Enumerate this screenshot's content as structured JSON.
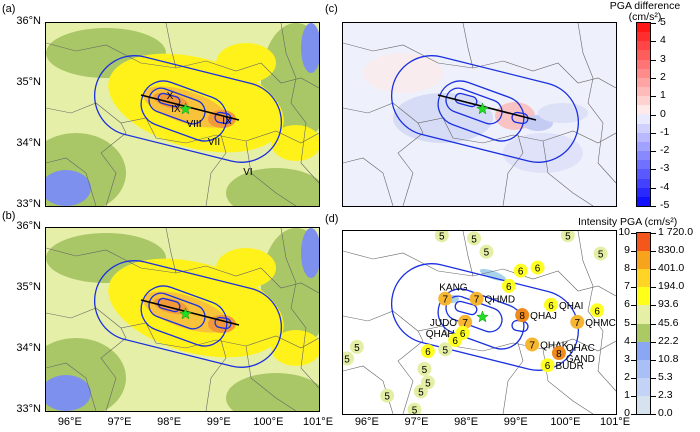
{
  "panels": {
    "a": "(a)",
    "b": "(b)",
    "c": "(c)",
    "d": "(d)"
  },
  "lat_labels": [
    "36°N",
    "35°N",
    "34°N",
    "33°N"
  ],
  "lat_values": [
    36,
    35,
    34,
    33
  ],
  "lon_labels": [
    "96°E",
    "97°E",
    "98°E",
    "99°E",
    "100°E",
    "101°E"
  ],
  "lon_values": [
    96,
    97,
    98,
    99,
    100,
    101
  ],
  "map_extent": {
    "lon": [
      95.5,
      101
    ],
    "lat": [
      33,
      36
    ]
  },
  "epicenter": {
    "lon": 98.31,
    "lat": 34.59,
    "color": "#22dd22"
  },
  "intensity_labels": [
    "X",
    "IX",
    "VIII",
    "IX",
    "VII",
    "VI"
  ],
  "diff_colorbar": {
    "title1": "PGA difference",
    "title2": "(cm/s²)",
    "ticks": [
      "5",
      "4",
      "3",
      "2",
      "1",
      "0",
      "-1",
      "-2",
      "-3",
      "-4",
      "-5"
    ]
  },
  "int_colorbar": {
    "title": "Intensity PGA (cm/s²)",
    "intensity_ticks": [
      "10",
      "9",
      "8",
      "7",
      "6",
      "5",
      "4",
      "3",
      "2",
      "1",
      "0"
    ],
    "pga_ticks": [
      "1 720.0",
      "830.0",
      "401.0",
      "194.0",
      "93.6",
      "45.6",
      "22.2",
      "10.8",
      "5.3",
      "2.3",
      "0.0"
    ],
    "colors": [
      "#d6e2ee",
      "#c3d3f6",
      "#a8c0f6",
      "#8ba7f4",
      "#abc964",
      "#e6efa6",
      "#ffff1a",
      "#ffd424",
      "#f7a31c",
      "#f4561c"
    ]
  },
  "station_colors": {
    "5": "#e4eea4",
    "6": "#ffff22",
    "7": "#f6b631",
    "8": "#f08a1a"
  },
  "stations": [
    {
      "v": "5",
      "lon": 97.49,
      "lat": 35.93,
      "name": ""
    },
    {
      "v": "5",
      "lon": 98.14,
      "lat": 35.88,
      "name": ""
    },
    {
      "v": "5",
      "lon": 98.39,
      "lat": 35.66,
      "name": ""
    },
    {
      "v": "5",
      "lon": 100.03,
      "lat": 35.93,
      "name": ""
    },
    {
      "v": "5",
      "lon": 100.69,
      "lat": 35.63,
      "name": ""
    },
    {
      "v": "6",
      "lon": 99.08,
      "lat": 35.35,
      "name": ""
    },
    {
      "v": "6",
      "lon": 99.42,
      "lat": 35.4,
      "name": ""
    },
    {
      "v": "6",
      "lon": 98.84,
      "lat": 35.1,
      "name": ""
    },
    {
      "v": "7",
      "lon": 97.56,
      "lat": 34.89,
      "name": "KANG",
      "pos": "above"
    },
    {
      "v": "7",
      "lon": 98.19,
      "lat": 34.89,
      "name": "QHMD",
      "pos": "right"
    },
    {
      "v": "6",
      "lon": 99.69,
      "lat": 34.79,
      "name": "QHAI",
      "pos": "right"
    },
    {
      "v": "8",
      "lon": 99.11,
      "lat": 34.62,
      "name": "QHAJ",
      "pos": "right"
    },
    {
      "v": "6",
      "lon": 100.62,
      "lat": 34.7,
      "name": ""
    },
    {
      "v": "7",
      "lon": 100.22,
      "lat": 34.51,
      "name": "QHMC",
      "pos": "right"
    },
    {
      "v": "7",
      "lon": 97.96,
      "lat": 34.51,
      "name": "JUDO",
      "pos": "left"
    },
    {
      "v": "6",
      "lon": 97.91,
      "lat": 34.33,
      "name": "QHAH",
      "pos": "left"
    },
    {
      "v": "6",
      "lon": 97.76,
      "lat": 34.21,
      "name": ""
    },
    {
      "v": "5",
      "lon": 97.56,
      "lat": 34.06,
      "name": ""
    },
    {
      "v": "6",
      "lon": 97.21,
      "lat": 34.03,
      "name": ""
    },
    {
      "v": "5",
      "lon": 95.78,
      "lat": 34.1,
      "name": ""
    },
    {
      "v": "5",
      "lon": 95.58,
      "lat": 33.91,
      "name": ""
    },
    {
      "v": "7",
      "lon": 99.31,
      "lat": 34.14,
      "name": "QHAK",
      "pos": "right"
    },
    {
      "v": "8",
      "lon": 99.85,
      "lat": 34.0,
      "name": "QHAC",
      "pos": "upright",
      "name2": "GAND"
    },
    {
      "v": "6",
      "lon": 99.62,
      "lat": 33.8,
      "name": "BUDR",
      "pos": "right"
    },
    {
      "v": "5",
      "lon": 97.14,
      "lat": 33.74,
      "name": ""
    },
    {
      "v": "5",
      "lon": 97.21,
      "lat": 33.52,
      "name": ""
    },
    {
      "v": "5",
      "lon": 97.07,
      "lat": 33.37,
      "name": ""
    },
    {
      "v": "5",
      "lon": 96.39,
      "lat": 33.3,
      "name": ""
    },
    {
      "v": "5",
      "lon": 96.94,
      "lat": 33.07,
      "name": ""
    }
  ]
}
